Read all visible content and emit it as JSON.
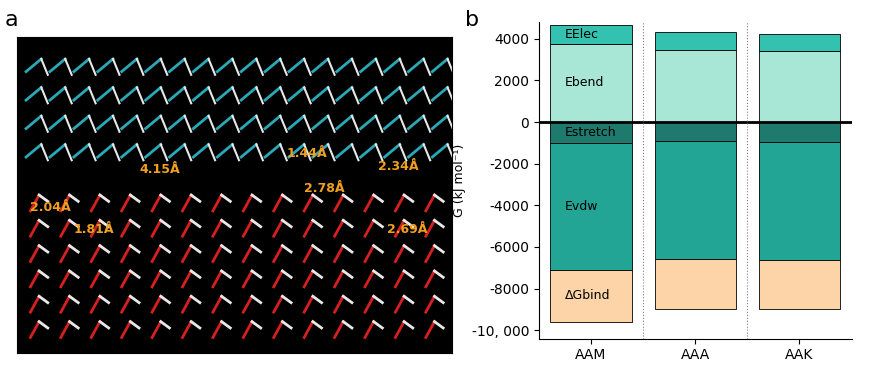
{
  "image_panel": {
    "panel_label": "a",
    "annotations": [
      "4.15Å",
      "2.04Å",
      "1.81Å",
      "1.44Å",
      "2.78Å",
      "2.34Å",
      "2.69Å"
    ]
  },
  "chart_data": {
    "type": "bar",
    "panel_label": "b",
    "stacked": true,
    "ylabel": "G (kJ mol⁻¹)",
    "categories": [
      "AAM",
      "AAA",
      "AAK"
    ],
    "series": [
      {
        "name": "Ebend",
        "color": "#a8e6d6",
        "values": [
          3750,
          3450,
          3400
        ]
      },
      {
        "name": "EElec",
        "color": "#33c2b0",
        "values": [
          900,
          850,
          850
        ]
      },
      {
        "name": "Estretch",
        "color": "#1f7a6e",
        "values": [
          -1000,
          -900,
          -950
        ]
      },
      {
        "name": "Evdw",
        "color": "#23a595",
        "values": [
          -6100,
          -5700,
          -5700
        ]
      },
      {
        "name": "ΔGbind",
        "color": "#fdd4a8",
        "values": [
          -2500,
          -2400,
          -2350
        ]
      }
    ],
    "ylim": [
      -10400,
      4800
    ],
    "yticks": [
      {
        "value": -10000,
        "label": "-10, 000"
      },
      -8000,
      -6000,
      -4000,
      -2000,
      0,
      2000,
      4000
    ],
    "grid": false
  }
}
